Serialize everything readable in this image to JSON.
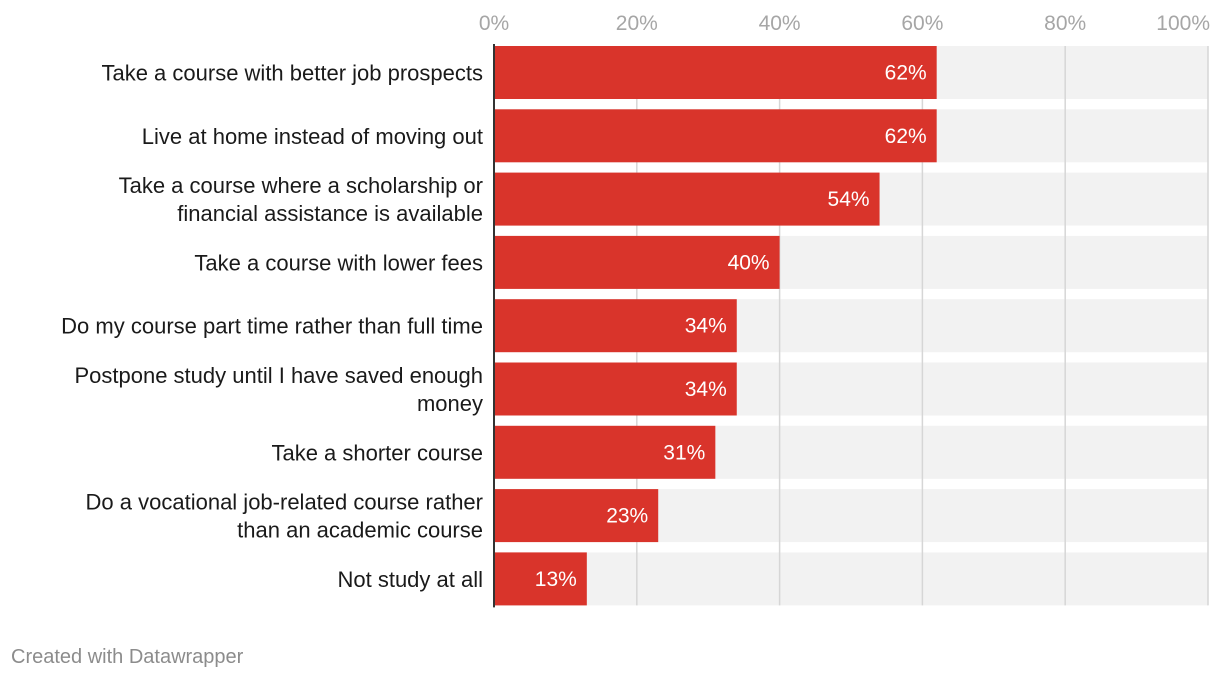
{
  "chart_data": {
    "type": "bar",
    "orientation": "horizontal",
    "categories": [
      [
        "Take a course with better job prospects"
      ],
      [
        "Live at home instead of moving out"
      ],
      [
        "Take a course where a scholarship or",
        "financial assistance is available"
      ],
      [
        "Take a course with lower fees"
      ],
      [
        "Do my course part time rather than full time"
      ],
      [
        "Postpone study until I have saved enough",
        "money"
      ],
      [
        "Take a shorter course"
      ],
      [
        "Do a vocational job-related course rather",
        "than an academic course"
      ],
      [
        "Not study at all"
      ]
    ],
    "values": [
      62,
      62,
      54,
      40,
      34,
      34,
      31,
      23,
      13
    ],
    "value_labels": [
      "62%",
      "62%",
      "54%",
      "40%",
      "34%",
      "34%",
      "31%",
      "23%",
      "13%"
    ],
    "xlim": [
      0,
      100
    ],
    "ticks": [
      0,
      20,
      40,
      60,
      80,
      100
    ],
    "tick_labels": [
      "0%",
      "20%",
      "40%",
      "60%",
      "80%",
      "100%"
    ],
    "tick_position": "top",
    "grid": true,
    "title": "",
    "xlabel": "",
    "ylabel": "",
    "colors": {
      "bar": "#d9342b",
      "track": "#f2f2f2",
      "grid": "#d6d6d6",
      "axis": "#333333"
    }
  },
  "footer": {
    "credit": "Created with Datawrapper"
  }
}
